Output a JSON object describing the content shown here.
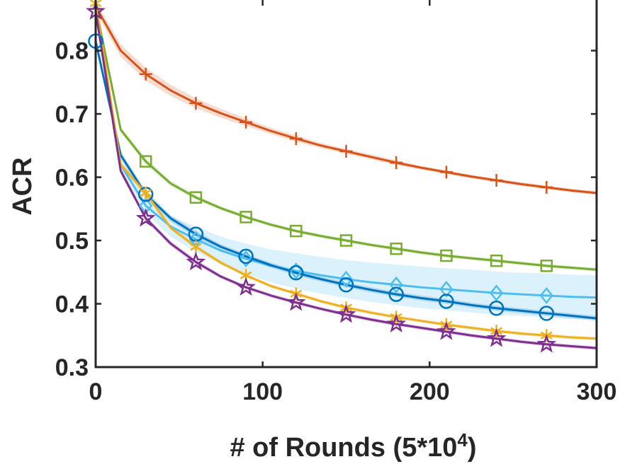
{
  "chart_data": {
    "type": "line",
    "title": "",
    "xlabel": "# of Rounds (5*10",
    "xlabel_exponent": "4",
    "xlabel_close": ")",
    "ylabel": "ACR",
    "xlim": [
      0,
      300
    ],
    "ylim": [
      0.3,
      0.88
    ],
    "xticks": [
      0,
      100,
      200,
      300
    ],
    "xtick_labels": [
      "0",
      "100",
      "200",
      "300"
    ],
    "yticks": [
      0.3,
      0.4,
      0.5,
      0.6,
      0.7,
      0.8
    ],
    "ytick_labels": [
      "0.3",
      "0.4",
      "0.5",
      "0.6",
      "0.7",
      "0.8"
    ],
    "grid": false,
    "series": [
      {
        "name": "series-orange-plus",
        "color": "#D95319",
        "marker": "plus",
        "x": [
          0,
          15,
          30,
          45,
          60,
          75,
          90,
          105,
          120,
          135,
          150,
          165,
          180,
          195,
          210,
          225,
          240,
          255,
          270,
          285,
          300
        ],
        "y": [
          0.87,
          0.8,
          0.763,
          0.737,
          0.717,
          0.701,
          0.687,
          0.673,
          0.661,
          0.65,
          0.641,
          0.632,
          0.623,
          0.615,
          0.608,
          0.601,
          0.595,
          0.589,
          0.584,
          0.579,
          0.575
        ],
        "band": [
          0.008,
          0.01,
          0.01,
          0.009,
          0.008,
          0.007,
          0.006,
          0.005,
          0.005,
          0.004,
          0.004,
          0.004,
          0.004,
          0.003,
          0.003,
          0.003,
          0.003,
          0.003,
          0.003,
          0.003,
          0.003
        ],
        "markers_x": [
          30,
          60,
          90,
          120,
          150,
          180,
          210,
          240,
          270
        ]
      },
      {
        "name": "series-green-square",
        "color": "#77AC30",
        "marker": "square",
        "x": [
          0,
          15,
          30,
          45,
          60,
          75,
          90,
          105,
          120,
          135,
          150,
          165,
          180,
          195,
          210,
          225,
          240,
          255,
          270,
          285,
          300
        ],
        "y": [
          0.87,
          0.675,
          0.625,
          0.59,
          0.568,
          0.551,
          0.537,
          0.525,
          0.515,
          0.507,
          0.5,
          0.493,
          0.487,
          0.481,
          0.476,
          0.472,
          0.468,
          0.464,
          0.46,
          0.457,
          0.454
        ],
        "band": [
          0.004,
          0.005,
          0.005,
          0.004,
          0.004,
          0.003,
          0.003,
          0.003,
          0.003,
          0.003,
          0.003,
          0.003,
          0.003,
          0.003,
          0.003,
          0.003,
          0.003,
          0.003,
          0.003,
          0.003,
          0.003
        ],
        "markers_x": [
          30,
          60,
          90,
          120,
          150,
          180,
          210,
          240,
          270
        ]
      },
      {
        "name": "series-lightblue-diamond",
        "color": "#4DBEEE",
        "marker": "diamond",
        "x": [
          0,
          15,
          30,
          45,
          60,
          75,
          90,
          105,
          120,
          135,
          150,
          165,
          180,
          195,
          210,
          225,
          240,
          255,
          270,
          285,
          300
        ],
        "y": [
          0.87,
          0.62,
          0.555,
          0.522,
          0.502,
          0.484,
          0.471,
          0.46,
          0.452,
          0.445,
          0.439,
          0.434,
          0.43,
          0.426,
          0.423,
          0.42,
          0.417,
          0.415,
          0.413,
          0.411,
          0.41
        ],
        "band": [
          0.005,
          0.01,
          0.012,
          0.016,
          0.02,
          0.022,
          0.024,
          0.026,
          0.028,
          0.029,
          0.03,
          0.031,
          0.032,
          0.033,
          0.033,
          0.034,
          0.034,
          0.034,
          0.035,
          0.035,
          0.035
        ],
        "markers_x": [
          30,
          60,
          90,
          120,
          150,
          180,
          210,
          240,
          270
        ]
      },
      {
        "name": "series-blue-circle",
        "color": "#0072BD",
        "marker": "circle",
        "x": [
          0,
          15,
          30,
          45,
          60,
          75,
          90,
          105,
          120,
          135,
          150,
          165,
          180,
          195,
          210,
          225,
          240,
          255,
          270,
          285,
          300
        ],
        "y": [
          0.815,
          0.635,
          0.573,
          0.535,
          0.51,
          0.49,
          0.475,
          0.461,
          0.449,
          0.439,
          0.43,
          0.422,
          0.415,
          0.409,
          0.404,
          0.398,
          0.393,
          0.389,
          0.385,
          0.381,
          0.377
        ],
        "band": [
          0.004,
          0.006,
          0.006,
          0.005,
          0.005,
          0.004,
          0.004,
          0.004,
          0.004,
          0.004,
          0.004,
          0.004,
          0.004,
          0.004,
          0.004,
          0.004,
          0.004,
          0.004,
          0.004,
          0.004,
          0.004
        ],
        "markers_x": [
          0,
          30,
          60,
          90,
          120,
          150,
          180,
          210,
          240,
          270
        ]
      },
      {
        "name": "series-yellow-asterisk",
        "color": "#EDB120",
        "marker": "asterisk",
        "x": [
          0,
          15,
          30,
          45,
          60,
          75,
          90,
          105,
          120,
          135,
          150,
          165,
          180,
          195,
          210,
          225,
          240,
          255,
          270,
          285,
          300
        ],
        "y": [
          0.875,
          0.62,
          0.575,
          0.52,
          0.49,
          0.465,
          0.445,
          0.428,
          0.416,
          0.404,
          0.394,
          0.386,
          0.379,
          0.373,
          0.367,
          0.362,
          0.357,
          0.353,
          0.35,
          0.347,
          0.345
        ],
        "band": [
          0.004,
          0.005,
          0.005,
          0.004,
          0.004,
          0.003,
          0.003,
          0.003,
          0.003,
          0.003,
          0.003,
          0.003,
          0.003,
          0.003,
          0.003,
          0.003,
          0.003,
          0.003,
          0.003,
          0.003,
          0.003
        ],
        "markers_x": [
          0,
          30,
          60,
          90,
          120,
          150,
          180,
          210,
          240,
          270
        ]
      },
      {
        "name": "series-purple-star",
        "color": "#7E2F8E",
        "marker": "star",
        "x": [
          0,
          15,
          30,
          45,
          60,
          75,
          90,
          105,
          120,
          135,
          150,
          165,
          180,
          195,
          210,
          225,
          240,
          255,
          270,
          285,
          300
        ],
        "y": [
          0.862,
          0.61,
          0.535,
          0.495,
          0.466,
          0.443,
          0.426,
          0.413,
          0.402,
          0.392,
          0.383,
          0.375,
          0.368,
          0.362,
          0.356,
          0.35,
          0.345,
          0.34,
          0.336,
          0.333,
          0.33
        ],
        "band": [
          0.003,
          0.005,
          0.004,
          0.004,
          0.004,
          0.003,
          0.003,
          0.003,
          0.003,
          0.003,
          0.003,
          0.003,
          0.003,
          0.003,
          0.003,
          0.003,
          0.003,
          0.003,
          0.003,
          0.003,
          0.003
        ],
        "markers_x": [
          0,
          30,
          60,
          90,
          120,
          150,
          180,
          210,
          240,
          270
        ]
      }
    ]
  }
}
